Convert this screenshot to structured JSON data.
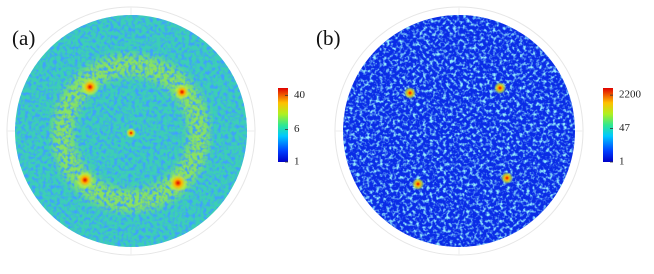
{
  "chart_data": [
    {
      "type": "pole-figure",
      "panel_label": "(a)",
      "colorbar": {
        "scale": "log",
        "clim": [
          1,
          60
        ],
        "ticks": [
          1,
          6,
          40
        ]
      }
    },
    {
      "type": "pole-figure",
      "panel_label": "(b)",
      "colorbar": {
        "scale": "log",
        "clim": [
          1,
          5000
        ],
        "ticks": [
          1,
          47,
          2200
        ]
      }
    }
  ]
}
